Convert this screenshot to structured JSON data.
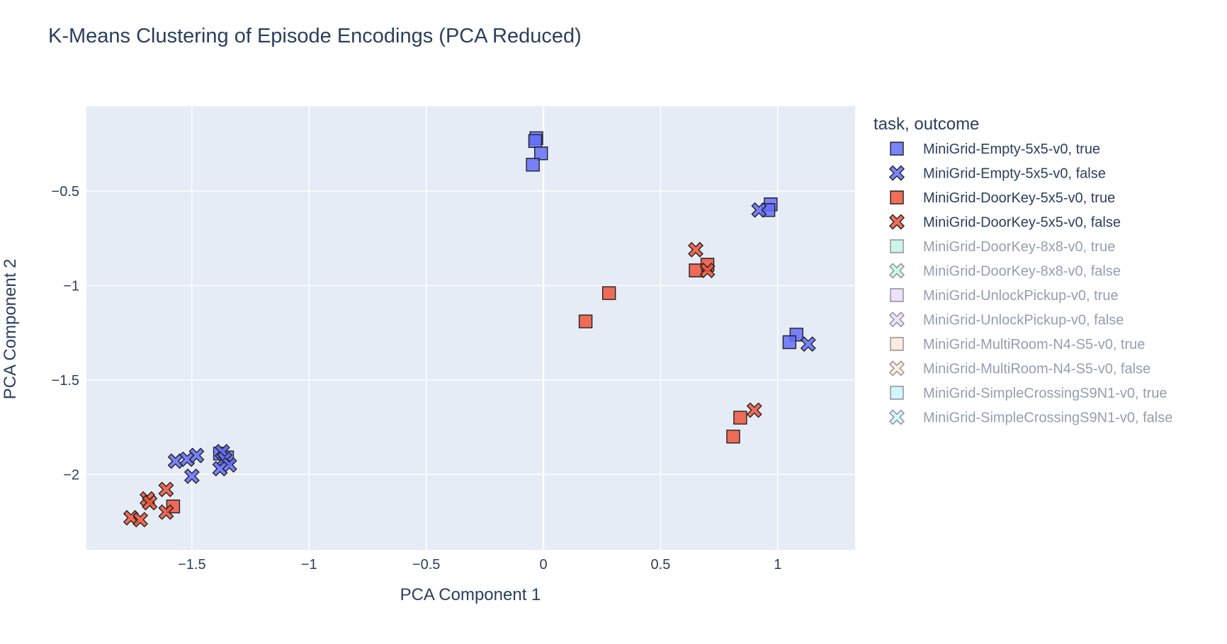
{
  "chart_data": {
    "type": "scatter",
    "title": "K-Means Clustering of Episode Encodings (PCA Reduced)",
    "xlabel": "PCA Component 1",
    "ylabel": "PCA Component 2",
    "xlim": [
      -1.95,
      1.33
    ],
    "ylim": [
      -2.4,
      -0.05
    ],
    "xticks": [
      -1.5,
      -1,
      -0.5,
      0,
      0.5,
      1
    ],
    "xtick_labels": [
      "−1.5",
      "−1",
      "−0.5",
      "0",
      "0.5",
      "1"
    ],
    "yticks": [
      -0.5,
      -1,
      -1.5,
      -2
    ],
    "ytick_labels": [
      "−0.5",
      "−1",
      "−1.5",
      "−2"
    ],
    "grid": true,
    "legend_title": "task, outcome",
    "legend_position": "right",
    "series": [
      {
        "name": "MiniGrid-Empty-5x5-v0, true",
        "symbol": "square",
        "color": "#636efa",
        "visible": true,
        "points": [
          [
            -0.03,
            -0.22
          ],
          [
            -0.035,
            -0.235
          ],
          [
            -0.01,
            -0.3
          ],
          [
            -0.045,
            -0.36
          ],
          [
            0.97,
            -0.57
          ],
          [
            0.96,
            -0.6
          ],
          [
            1.08,
            -1.26
          ],
          [
            1.05,
            -1.3
          ],
          [
            -1.38,
            -1.89
          ],
          [
            -1.35,
            -1.91
          ]
        ]
      },
      {
        "name": "MiniGrid-Empty-5x5-v0, false",
        "symbol": "x",
        "color": "#636efa",
        "visible": true,
        "points": [
          [
            0.92,
            -0.6
          ],
          [
            1.13,
            -1.31
          ],
          [
            -1.57,
            -1.93
          ],
          [
            -1.52,
            -1.92
          ],
          [
            -1.48,
            -1.9
          ],
          [
            -1.5,
            -2.01
          ],
          [
            -1.37,
            -1.88
          ],
          [
            -1.36,
            -1.92
          ],
          [
            -1.34,
            -1.95
          ],
          [
            -1.38,
            -1.97
          ]
        ]
      },
      {
        "name": "MiniGrid-DoorKey-5x5-v0, true",
        "symbol": "square",
        "color": "#ef553b",
        "visible": true,
        "points": [
          [
            0.7,
            -0.89
          ],
          [
            0.65,
            -0.92
          ],
          [
            0.28,
            -1.04
          ],
          [
            0.18,
            -1.19
          ],
          [
            0.84,
            -1.7
          ],
          [
            0.81,
            -1.8
          ],
          [
            -1.58,
            -2.17
          ]
        ]
      },
      {
        "name": "MiniGrid-DoorKey-5x5-v0, false",
        "symbol": "x",
        "color": "#ef553b",
        "visible": true,
        "points": [
          [
            0.65,
            -0.81
          ],
          [
            0.7,
            -0.92
          ],
          [
            0.9,
            -1.66
          ],
          [
            -1.61,
            -2.08
          ],
          [
            -1.69,
            -2.13
          ],
          [
            -1.68,
            -2.15
          ],
          [
            -1.61,
            -2.2
          ],
          [
            -1.76,
            -2.23
          ],
          [
            -1.72,
            -2.24
          ]
        ]
      },
      {
        "name": "MiniGrid-DoorKey-8x8-v0, true",
        "symbol": "square",
        "color": "#00cc96",
        "visible": false,
        "points": []
      },
      {
        "name": "MiniGrid-DoorKey-8x8-v0, false",
        "symbol": "x",
        "color": "#00cc96",
        "visible": false,
        "points": []
      },
      {
        "name": "MiniGrid-UnlockPickup-v0, true",
        "symbol": "square",
        "color": "#ab63fa",
        "visible": false,
        "points": []
      },
      {
        "name": "MiniGrid-UnlockPickup-v0, false",
        "symbol": "x",
        "color": "#ab63fa",
        "visible": false,
        "points": []
      },
      {
        "name": "MiniGrid-MultiRoom-N4-S5-v0, true",
        "symbol": "square",
        "color": "#ffa15a",
        "visible": false,
        "points": []
      },
      {
        "name": "MiniGrid-MultiRoom-N4-S5-v0, false",
        "symbol": "x",
        "color": "#ffa15a",
        "visible": false,
        "points": []
      },
      {
        "name": "MiniGrid-SimpleCrossingS9N1-v0, true",
        "symbol": "square",
        "color": "#19d3f3",
        "visible": false,
        "points": []
      },
      {
        "name": "MiniGrid-SimpleCrossingS9N1-v0, false",
        "symbol": "x",
        "color": "#19d3f3",
        "visible": false,
        "points": []
      }
    ]
  }
}
